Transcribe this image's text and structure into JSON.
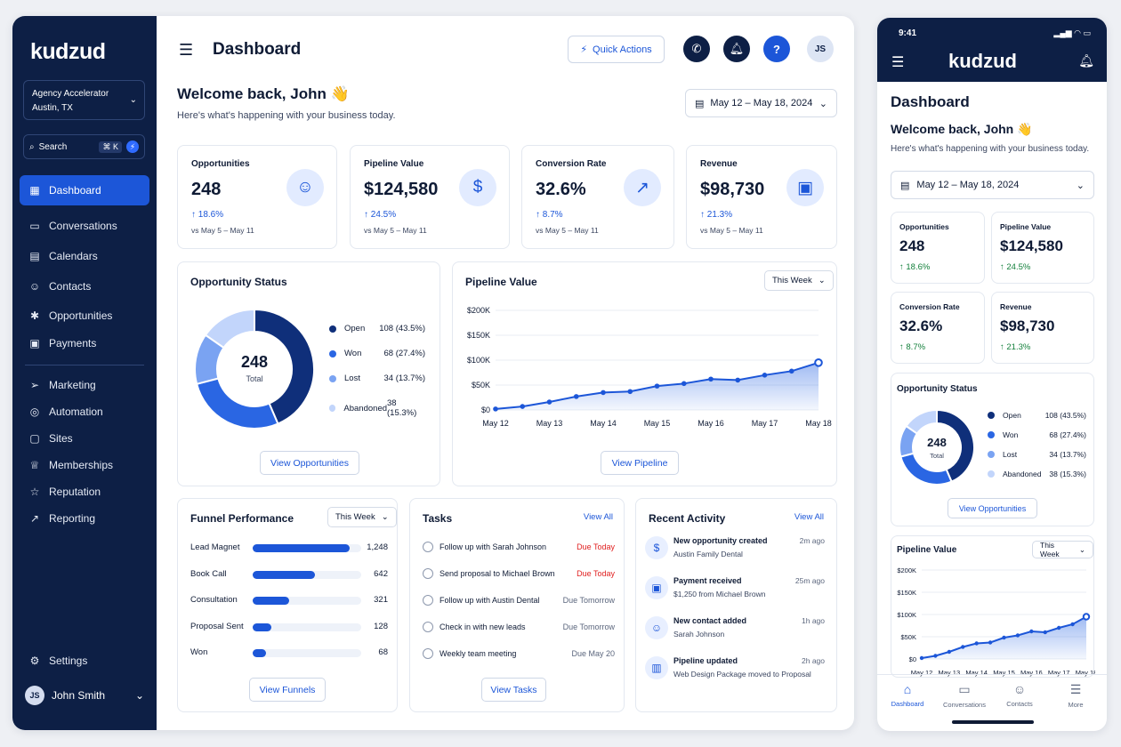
{
  "brand": "kudzud",
  "sidebar": {
    "agency_name": "Agency Accelerator",
    "agency_location": "Austin, TX",
    "search_placeholder": "Search",
    "search_shortcut": "⌘ K",
    "items": [
      {
        "label": "Dashboard",
        "icon": "dashboard-icon"
      },
      {
        "label": "Conversations",
        "icon": "chat-icon"
      },
      {
        "label": "Calendars",
        "icon": "calendar-icon"
      },
      {
        "label": "Contacts",
        "icon": "contacts-icon"
      },
      {
        "label": "Opportunities",
        "icon": "opportunities-icon"
      },
      {
        "label": "Payments",
        "icon": "payments-icon"
      },
      {
        "label": "Marketing",
        "icon": "send-icon"
      },
      {
        "label": "Automation",
        "icon": "automation-icon"
      },
      {
        "label": "Sites",
        "icon": "sites-icon"
      },
      {
        "label": "Memberships",
        "icon": "memberships-icon"
      },
      {
        "label": "Reputation",
        "icon": "star-icon"
      },
      {
        "label": "Reporting",
        "icon": "trend-icon"
      }
    ],
    "settings_label": "Settings",
    "user_initials": "JS",
    "user_name": "John Smith"
  },
  "header": {
    "title": "Dashboard",
    "quick_actions": "Quick Actions",
    "help": "?",
    "user_initials": "JS"
  },
  "welcome": {
    "title": "Welcome back, John 👋",
    "subtitle": "Here's what's happening with your business today."
  },
  "date_range": "May 12 – May 18, 2024",
  "kpis": [
    {
      "label": "Opportunities",
      "value": "248",
      "change": "18.6%",
      "compare": "vs May 5 – May 11",
      "icon": "user-icon"
    },
    {
      "label": "Pipeline Value",
      "value": "$124,580",
      "change": "24.5%",
      "compare": "vs May 5 – May 11",
      "icon": "dollar-icon"
    },
    {
      "label": "Conversion Rate",
      "value": "32.6%",
      "change": "8.7%",
      "compare": "vs May 5 – May 11",
      "icon": "chart-up-icon"
    },
    {
      "label": "Revenue",
      "value": "$98,730",
      "change": "21.3%",
      "compare": "vs May 5 – May 11",
      "icon": "wallet-icon"
    }
  ],
  "opportunity_status": {
    "title": "Opportunity Status",
    "total": "248",
    "total_label": "Total",
    "button": "View Opportunities",
    "segments": [
      {
        "name": "Open",
        "value": 108,
        "label": "108 (43.5%)",
        "color": "#0f2f7a"
      },
      {
        "name": "Won",
        "value": 68,
        "label": "68 (27.4%)",
        "color": "#2a66e3"
      },
      {
        "name": "Lost",
        "value": 34,
        "label": "34 (13.7%)",
        "color": "#7aa3f2"
      },
      {
        "name": "Abandoned",
        "value": 38,
        "label": "38 (15.3%)",
        "color": "#c2d5fb"
      }
    ]
  },
  "pipeline": {
    "title": "Pipeline Value",
    "filter": "This Week",
    "button": "View Pipeline"
  },
  "chart_data": {
    "type": "line",
    "x": [
      "May 12",
      "May 12.5",
      "May 13",
      "May 13.5",
      "May 14",
      "May 14.5",
      "May 15",
      "May 15.5",
      "May 16",
      "May 16.5",
      "May 17",
      "May 17.5",
      "May 18"
    ],
    "categories": [
      "May 12",
      "May 13",
      "May 14",
      "May 15",
      "May 16",
      "May 17",
      "May 18"
    ],
    "values": [
      2000,
      7000,
      16000,
      27000,
      35000,
      37000,
      48000,
      53000,
      62000,
      60000,
      70000,
      78000,
      95000
    ],
    "yticks": [
      "$0",
      "$50K",
      "$100K",
      "$150K",
      "$200K"
    ],
    "ylim": [
      0,
      200000
    ],
    "title": "Pipeline Value",
    "grid": true
  },
  "funnel": {
    "title": "Funnel Performance",
    "filter": "This Week",
    "button": "View Funnels",
    "rows": [
      {
        "label": "Lead Magnet",
        "value": "1,248",
        "pct": 0.89
      },
      {
        "label": "Book Call",
        "value": "642",
        "pct": 0.57
      },
      {
        "label": "Consultation",
        "value": "321",
        "pct": 0.34
      },
      {
        "label": "Proposal Sent",
        "value": "128",
        "pct": 0.17
      },
      {
        "label": "Won",
        "value": "68",
        "pct": 0.12
      }
    ]
  },
  "tasks": {
    "title": "Tasks",
    "view_all": "View All",
    "button": "View Tasks",
    "items": [
      {
        "text": "Follow up with Sarah Johnson",
        "due": "Due Today",
        "urgent": true
      },
      {
        "text": "Send proposal to Michael Brown",
        "due": "Due Today",
        "urgent": true
      },
      {
        "text": "Follow up with Austin Dental",
        "due": "Due Tomorrow",
        "urgent": false
      },
      {
        "text": "Check in with new leads",
        "due": "Due Tomorrow",
        "urgent": false
      },
      {
        "text": "Weekly team meeting",
        "due": "Due May 20",
        "urgent": false
      }
    ]
  },
  "activity": {
    "title": "Recent Activity",
    "view_all": "View All",
    "items": [
      {
        "title": "New opportunity created",
        "detail": "Austin Family Dental",
        "time": "2m ago",
        "icon": "dollar-icon"
      },
      {
        "title": "Payment received",
        "detail": "$1,250 from Michael Brown",
        "time": "25m ago",
        "icon": "payment-icon"
      },
      {
        "title": "New contact added",
        "detail": "Sarah Johnson",
        "time": "1h ago",
        "icon": "user-icon"
      },
      {
        "title": "Pipeline updated",
        "detail": "Web Design Package moved to Proposal",
        "time": "2h ago",
        "icon": "bar-chart-icon"
      }
    ]
  },
  "phone": {
    "time": "9:41",
    "status": "▂▄▆ ◠ ▭",
    "title": "Dashboard",
    "welcome": "Welcome back, John 👋",
    "subtitle": "Here's what's happening with your business today.",
    "date_range": "May 12 – May 18, 2024",
    "tabs": [
      {
        "label": "Dashboard",
        "icon": "home-icon"
      },
      {
        "label": "Conversations",
        "icon": "chat-icon"
      },
      {
        "label": "Contacts",
        "icon": "contacts-icon"
      },
      {
        "label": "More",
        "icon": "menu-icon"
      }
    ]
  }
}
